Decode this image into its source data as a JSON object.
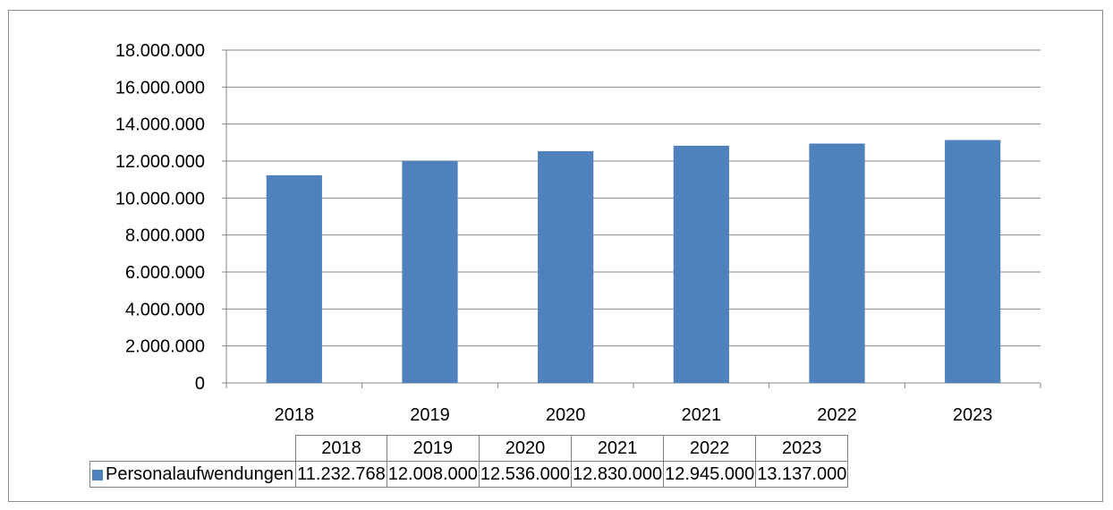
{
  "chart_data": {
    "type": "bar",
    "categories": [
      "2018",
      "2019",
      "2020",
      "2021",
      "2022",
      "2023"
    ],
    "series": [
      {
        "name": "Personalaufwendungen",
        "values": [
          11232768,
          12008000,
          12536000,
          12830000,
          12945000,
          13137000
        ],
        "value_labels": [
          "11.232.768",
          "12.008.000",
          "12.536.000",
          "12.830.000",
          "12.945.000",
          "13.137.000"
        ],
        "color": "#4f81bd"
      }
    ],
    "ylim": [
      0,
      18000000
    ],
    "yticks": [
      0,
      2000000,
      4000000,
      6000000,
      8000000,
      10000000,
      12000000,
      14000000,
      16000000,
      18000000
    ],
    "ytick_labels": [
      "0",
      "2.000.000",
      "4.000.000",
      "6.000.000",
      "8.000.000",
      "10.000.000",
      "12.000.000",
      "14.000.000",
      "16.000.000",
      "18.000.000"
    ],
    "grid": true,
    "legend": "data-table"
  }
}
